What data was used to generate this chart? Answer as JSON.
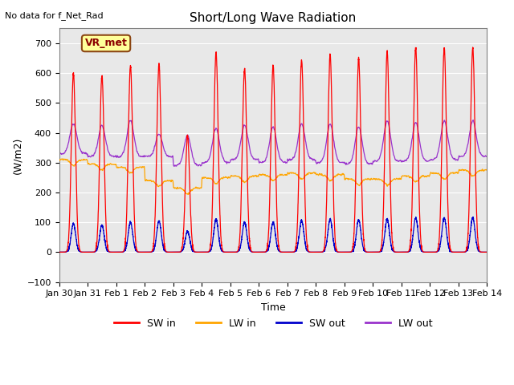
{
  "title": "Short/Long Wave Radiation",
  "xlabel": "Time",
  "ylabel": "(W/m2)",
  "top_left_text": "No data for f_Net_Rad",
  "legend_label": "VR_met",
  "ylim": [
    -100,
    750
  ],
  "yticks": [
    -100,
    0,
    100,
    200,
    300,
    400,
    500,
    600,
    700
  ],
  "xtick_labels": [
    "Jan 30",
    "Jan 31",
    "Feb 1",
    "Feb 2",
    "Feb 3",
    "Feb 4",
    "Feb 5",
    "Feb 6",
    "Feb 7",
    "Feb 8",
    "Feb 9",
    "Feb 10",
    "Feb 11",
    "Feb 12",
    "Feb 13",
    "Feb 14"
  ],
  "colors": {
    "SW_in": "#ff0000",
    "LW_in": "#ffa500",
    "SW_out": "#0000cc",
    "LW_out": "#9933cc"
  },
  "bg_color": "#e8e8e8",
  "n_days": 15,
  "points_per_day": 288,
  "sw_in_peaks": [
    600,
    590,
    625,
    630,
    390,
    670,
    615,
    625,
    645,
    660,
    650,
    670,
    685,
    685,
    685
  ],
  "sw_out_peaks": [
    95,
    90,
    100,
    105,
    70,
    110,
    100,
    100,
    105,
    110,
    108,
    110,
    115,
    115,
    115
  ],
  "lw_in_base": [
    310,
    295,
    285,
    240,
    215,
    250,
    255,
    260,
    265,
    260,
    245,
    245,
    255,
    265,
    275
  ],
  "lw_out_base": [
    330,
    320,
    320,
    320,
    290,
    300,
    310,
    300,
    310,
    300,
    295,
    305,
    305,
    310,
    320
  ],
  "lw_out_peaks": [
    430,
    425,
    440,
    395,
    390,
    415,
    425,
    420,
    430,
    430,
    420,
    440,
    435,
    440,
    440
  ]
}
